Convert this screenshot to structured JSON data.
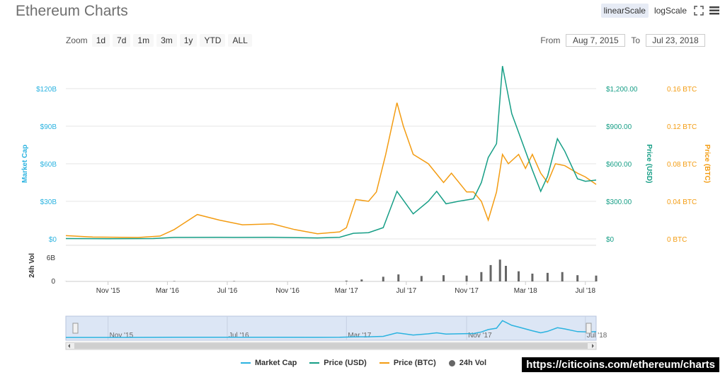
{
  "title": "Ethereum Charts",
  "scale": {
    "linear_label": "linearScale",
    "log_label": "logScale",
    "active": "linear"
  },
  "zoom": {
    "label": "Zoom",
    "buttons": [
      "1d",
      "7d",
      "1m",
      "3m",
      "1y",
      "YTD",
      "ALL"
    ]
  },
  "range": {
    "from_label": "From",
    "from_value": "Aug 7, 2015",
    "to_label": "To",
    "to_value": "Jul 23, 2018"
  },
  "watermark": "https://citicoins.com/ethereum/charts",
  "legend": [
    {
      "label": "Market Cap",
      "color": "#2bb3e0",
      "kind": "line"
    },
    {
      "label": "Price (USD)",
      "color": "#169e86",
      "kind": "line"
    },
    {
      "label": "Price (BTC)",
      "color": "#f39c12",
      "kind": "line"
    },
    {
      "label": "24h Vol",
      "color": "#666666",
      "kind": "dot"
    }
  ],
  "colors": {
    "market_cap": "#2bb3e0",
    "price_usd": "#169e86",
    "price_btc": "#f39c12",
    "volume": "#666666"
  },
  "chart_data": {
    "type": "line",
    "title": "Ethereum Charts",
    "x_range": [
      "2015-08-07",
      "2018-07-23"
    ],
    "x_ticks": [
      "Nov '15",
      "Mar '16",
      "Jul '16",
      "Nov '16",
      "Mar '17",
      "Jul '17",
      "Nov '17",
      "Mar '18",
      "Jul '18"
    ],
    "axes": {
      "market_cap": {
        "label": "Market Cap",
        "ticks": [
          "$0",
          "$30B",
          "$60B",
          "$90B",
          "$120B"
        ],
        "range": [
          0,
          120
        ]
      },
      "price_usd": {
        "label": "Price (USD)",
        "ticks": [
          "$0",
          "$300.00",
          "$600.00",
          "$900.00",
          "$1,200.00"
        ],
        "range": [
          0,
          1200
        ]
      },
      "price_btc": {
        "label": "Price (BTC)",
        "ticks": [
          "0 BTC",
          "0.04 BTC",
          "0.08 BTC",
          "0.12 BTC",
          "0.16 BTC"
        ],
        "range": [
          0,
          0.16
        ]
      },
      "volume": {
        "label": "24h Vol",
        "ticks": [
          "0",
          "6B"
        ],
        "range": [
          0,
          6
        ]
      }
    },
    "navigator_ticks": [
      "Nov '15",
      "Jul '16",
      "Mar '17",
      "Nov '17",
      "Jul '18"
    ],
    "series": [
      {
        "name": "Price (USD)",
        "x": [
          "2015-08-07",
          "2015-11-01",
          "2016-02-01",
          "2016-03-15",
          "2016-06-15",
          "2016-07-15",
          "2016-10-01",
          "2017-01-01",
          "2017-02-15",
          "2017-03-15",
          "2017-04-15",
          "2017-05-15",
          "2017-06-12",
          "2017-07-15",
          "2017-08-15",
          "2017-09-01",
          "2017-09-20",
          "2017-10-15",
          "2017-11-15",
          "2017-12-01",
          "2017-12-15",
          "2018-01-01",
          "2018-01-13",
          "2018-02-01",
          "2018-02-15",
          "2018-03-15",
          "2018-04-01",
          "2018-04-15",
          "2018-05-05",
          "2018-05-20",
          "2018-06-15",
          "2018-07-01",
          "2018-07-23"
        ],
        "values": [
          2.8,
          1,
          3,
          12,
          13,
          12,
          13,
          8,
          13,
          45,
          50,
          90,
          380,
          200,
          300,
          380,
          280,
          300,
          320,
          450,
          650,
          760,
          1380,
          1000,
          850,
          550,
          380,
          500,
          800,
          700,
          480,
          460,
          470
        ]
      },
      {
        "name": "Price (BTC)",
        "x": [
          "2015-08-07",
          "2015-10-01",
          "2016-01-01",
          "2016-02-15",
          "2016-03-15",
          "2016-05-01",
          "2016-06-15",
          "2016-08-01",
          "2016-10-01",
          "2016-11-15",
          "2017-01-01",
          "2017-02-15",
          "2017-03-01",
          "2017-03-20",
          "2017-04-15",
          "2017-05-01",
          "2017-05-20",
          "2017-06-12",
          "2017-06-25",
          "2017-07-15",
          "2017-08-15",
          "2017-09-15",
          "2017-10-01",
          "2017-11-01",
          "2017-11-15",
          "2017-12-01",
          "2017-12-15",
          "2018-01-01",
          "2018-01-13",
          "2018-01-25",
          "2018-02-15",
          "2018-03-01",
          "2018-03-15",
          "2018-04-01",
          "2018-04-15",
          "2018-05-01",
          "2018-05-20",
          "2018-06-15",
          "2018-07-01",
          "2018-07-23"
        ],
        "values": [
          0.0035,
          0.002,
          0.0015,
          0.003,
          0.01,
          0.026,
          0.02,
          0.015,
          0.016,
          0.01,
          0.0055,
          0.0075,
          0.012,
          0.042,
          0.04,
          0.05,
          0.09,
          0.145,
          0.12,
          0.09,
          0.08,
          0.06,
          0.07,
          0.05,
          0.05,
          0.04,
          0.02,
          0.05,
          0.09,
          0.08,
          0.09,
          0.075,
          0.09,
          0.07,
          0.06,
          0.08,
          0.078,
          0.07,
          0.066,
          0.058
        ]
      },
      {
        "name": "24h Vol",
        "x": [
          "2015-08-07",
          "2016-03-15",
          "2016-07-15",
          "2017-03-01",
          "2017-04-01",
          "2017-05-15",
          "2017-06-15",
          "2017-08-01",
          "2017-09-15",
          "2017-11-01",
          "2017-12-01",
          "2017-12-20",
          "2018-01-08",
          "2018-01-20",
          "2018-02-15",
          "2018-03-15",
          "2018-04-15",
          "2018-05-15",
          "2018-06-15",
          "2018-07-23"
        ],
        "values": [
          0.02,
          0.1,
          0.1,
          0.2,
          0.5,
          1.2,
          1.8,
          1.4,
          1.6,
          1.5,
          2.4,
          4.2,
          5.6,
          4.0,
          2.6,
          2.0,
          2.2,
          2.4,
          1.6,
          1.5
        ]
      }
    ]
  }
}
